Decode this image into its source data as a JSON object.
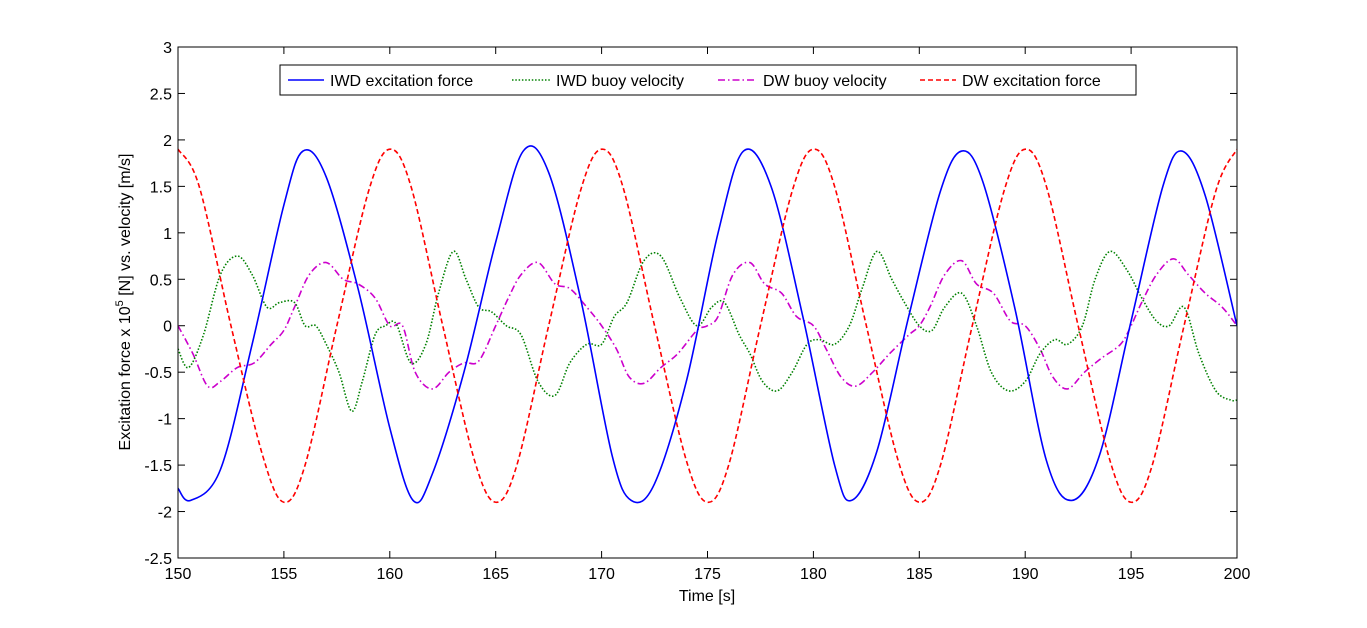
{
  "chart_data": {
    "type": "line",
    "title": "",
    "xlabel": "Time [s]",
    "ylabel_parts": [
      "Excitation force x 10",
      "5",
      " [N] vs. velocity [m/s]"
    ],
    "xlim": [
      150,
      200
    ],
    "ylim": [
      -2.5,
      3
    ],
    "xticks": [
      150,
      155,
      160,
      165,
      170,
      175,
      180,
      185,
      190,
      195,
      200
    ],
    "yticks": [
      -2.5,
      -2,
      -1.5,
      -1,
      -0.5,
      0,
      0.5,
      1,
      1.5,
      2,
      2.5,
      3
    ],
    "xtick_labels": [
      "150",
      "155",
      "160",
      "165",
      "170",
      "175",
      "180",
      "185",
      "190",
      "195",
      "200"
    ],
    "ytick_labels": [
      "-2.5",
      "-2",
      "-1.5",
      "-1",
      "-0.5",
      "0",
      "0.5",
      "1",
      "1.5",
      "2",
      "2.5",
      "3"
    ],
    "grid": false,
    "legend_placement": "top-center",
    "series": [
      {
        "name": "IWD excitation force",
        "color": "#0000ff",
        "style": "solid",
        "x": [
          150.0,
          150.6,
          152.0,
          153.5,
          155.0,
          155.9,
          157.0,
          158.5,
          160.0,
          161.1,
          162.0,
          163.5,
          165.0,
          166.3,
          167.5,
          169.0,
          170.5,
          171.4,
          172.5,
          174.0,
          175.5,
          176.7,
          178.0,
          179.5,
          181.0,
          181.8,
          183.0,
          184.5,
          186.0,
          187.0,
          188.0,
          189.5,
          191.0,
          192.2,
          193.5,
          195.0,
          196.5,
          197.4,
          198.5,
          200.0
        ],
        "y": [
          -1.75,
          -1.88,
          -1.55,
          -0.2,
          1.3,
          1.88,
          1.6,
          0.4,
          -1.1,
          -1.88,
          -1.6,
          -0.5,
          0.9,
          1.88,
          1.65,
          0.3,
          -1.4,
          -1.88,
          -1.7,
          -0.6,
          1.0,
          1.88,
          1.5,
          0.1,
          -1.5,
          -1.88,
          -1.35,
          0.1,
          1.45,
          1.88,
          1.55,
          0.2,
          -1.45,
          -1.88,
          -1.4,
          0.05,
          1.5,
          1.88,
          1.4,
          0.0
        ]
      },
      {
        "name": "IWD buoy velocity",
        "color": "#008000",
        "style": "dotted",
        "x": [
          150.0,
          150.5,
          151.2,
          152.0,
          152.8,
          153.5,
          154.2,
          154.8,
          155.5,
          156.0,
          156.5,
          157.0,
          157.6,
          158.2,
          158.7,
          159.3,
          159.8,
          160.3,
          161.0,
          161.7,
          162.3,
          163.0,
          163.6,
          164.2,
          164.8,
          165.5,
          166.2,
          167.0,
          167.8,
          168.5,
          169.3,
          170.0,
          170.6,
          171.2,
          172.0,
          172.8,
          173.7,
          174.5,
          175.2,
          175.8,
          176.5,
          177.0,
          177.6,
          178.3,
          179.0,
          179.7,
          180.3,
          181.0,
          181.7,
          182.3,
          183.0,
          183.7,
          184.3,
          185.0,
          185.6,
          186.2,
          187.0,
          187.7,
          188.4,
          189.2,
          190.0,
          190.7,
          191.4,
          192.0,
          192.7,
          193.3,
          194.0,
          194.8,
          195.5,
          196.2,
          196.8,
          197.5,
          198.2,
          199.0,
          199.7,
          200.0
        ],
        "y": [
          -0.25,
          -0.45,
          -0.1,
          0.55,
          0.75,
          0.55,
          0.2,
          0.25,
          0.25,
          0.0,
          0.0,
          -0.2,
          -0.5,
          -0.92,
          -0.6,
          -0.1,
          0.0,
          0.02,
          -0.4,
          -0.2,
          0.35,
          0.8,
          0.5,
          0.2,
          0.15,
          0.0,
          -0.1,
          -0.6,
          -0.75,
          -0.4,
          -0.2,
          -0.2,
          0.1,
          0.25,
          0.7,
          0.75,
          0.3,
          0.0,
          0.2,
          0.25,
          -0.1,
          -0.3,
          -0.6,
          -0.7,
          -0.5,
          -0.2,
          -0.15,
          -0.2,
          0.0,
          0.4,
          0.8,
          0.5,
          0.25,
          0.0,
          -0.05,
          0.2,
          0.35,
          0.0,
          -0.5,
          -0.7,
          -0.6,
          -0.3,
          -0.15,
          -0.2,
          0.0,
          0.5,
          0.8,
          0.6,
          0.3,
          0.05,
          0.0,
          0.2,
          -0.3,
          -0.7,
          -0.8,
          -0.8
        ]
      },
      {
        "name": "DW buoy velocity",
        "color": "#cc00cc",
        "style": "dashdot",
        "x": [
          150.0,
          150.7,
          151.4,
          152.0,
          152.8,
          153.6,
          154.4,
          155.0,
          155.5,
          156.2,
          157.0,
          157.8,
          158.5,
          159.3,
          160.0,
          160.6,
          161.2,
          162.0,
          162.8,
          163.5,
          164.2,
          165.0,
          165.6,
          166.2,
          167.0,
          167.8,
          168.5,
          169.3,
          170.0,
          170.7,
          171.3,
          172.0,
          172.8,
          173.6,
          174.5,
          175.0,
          175.5,
          176.2,
          177.0,
          177.7,
          178.5,
          179.2,
          180.0,
          180.6,
          181.3,
          182.0,
          182.8,
          183.6,
          184.5,
          185.0,
          185.5,
          186.2,
          187.0,
          187.7,
          188.5,
          189.3,
          190.0,
          190.7,
          191.3,
          192.0,
          192.8,
          193.6,
          194.5,
          195.0,
          195.5,
          196.2,
          197.0,
          197.7,
          198.5,
          199.3,
          200.0
        ],
        "y": [
          0.0,
          -0.3,
          -0.65,
          -0.6,
          -0.45,
          -0.4,
          -0.2,
          -0.05,
          0.2,
          0.55,
          0.68,
          0.5,
          0.45,
          0.3,
          0.0,
          0.0,
          -0.5,
          -0.68,
          -0.5,
          -0.4,
          -0.38,
          0.0,
          0.3,
          0.55,
          0.68,
          0.45,
          0.4,
          0.2,
          0.0,
          -0.25,
          -0.55,
          -0.62,
          -0.45,
          -0.3,
          -0.05,
          0.0,
          0.1,
          0.55,
          0.68,
          0.45,
          0.35,
          0.1,
          0.0,
          -0.25,
          -0.55,
          -0.65,
          -0.5,
          -0.3,
          -0.1,
          0.0,
          0.2,
          0.55,
          0.7,
          0.45,
          0.35,
          0.05,
          0.0,
          -0.25,
          -0.55,
          -0.68,
          -0.5,
          -0.35,
          -0.2,
          0.0,
          0.25,
          0.55,
          0.72,
          0.55,
          0.35,
          0.2,
          0.0
        ]
      },
      {
        "name": "DW excitation force",
        "color": "#ff0000",
        "style": "dashed",
        "x": [
          150.0,
          151.0,
          152.5,
          154.0,
          155.0,
          156.0,
          157.5,
          159.0,
          160.0,
          161.0,
          162.5,
          164.0,
          165.0,
          166.0,
          167.5,
          169.0,
          170.0,
          171.0,
          172.5,
          174.0,
          175.0,
          176.0,
          177.5,
          179.0,
          180.0,
          181.0,
          182.5,
          184.0,
          185.0,
          186.0,
          187.5,
          189.0,
          190.0,
          191.0,
          192.5,
          194.0,
          195.0,
          196.0,
          197.5,
          199.0,
          200.0
        ],
        "y": [
          1.9,
          1.5,
          0.0,
          -1.4,
          -1.9,
          -1.5,
          0.0,
          1.45,
          1.9,
          1.5,
          0.0,
          -1.45,
          -1.9,
          -1.5,
          0.0,
          1.45,
          1.9,
          1.5,
          0.0,
          -1.45,
          -1.9,
          -1.5,
          0.0,
          1.45,
          1.9,
          1.5,
          0.0,
          -1.45,
          -1.9,
          -1.5,
          0.0,
          1.45,
          1.9,
          1.5,
          0.0,
          -1.45,
          -1.9,
          -1.5,
          0.0,
          1.45,
          1.9
        ]
      }
    ]
  }
}
